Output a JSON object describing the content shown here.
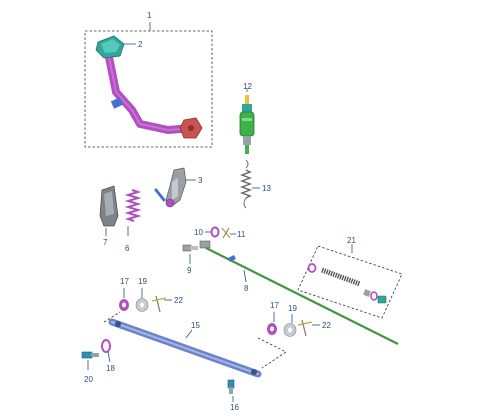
{
  "callouts": {
    "c1": "1",
    "c2": "2",
    "c3": "3",
    "c6": "6",
    "c7": "7",
    "c8": "8",
    "c9": "9",
    "c10": "10",
    "c11": "11",
    "c12": "12",
    "c13": "13",
    "c15": "15",
    "c16": "16",
    "c17a": "17",
    "c17b": "17",
    "c18": "18",
    "c19a": "19",
    "c19b": "19",
    "c20": "20",
    "c21": "21",
    "c22a": "22",
    "c22b": "22"
  },
  "colors": {
    "callout_text": "#2a4f7a",
    "pedal_arm": "#b04fbf",
    "pedal_pad": "#2fa89a",
    "pedal_end": "#c9534f",
    "switch_body": "#3fb24a",
    "shift_rod": "#3a9a3c",
    "link_rod": "#6b83c8",
    "washer": "#b04fbf"
  }
}
